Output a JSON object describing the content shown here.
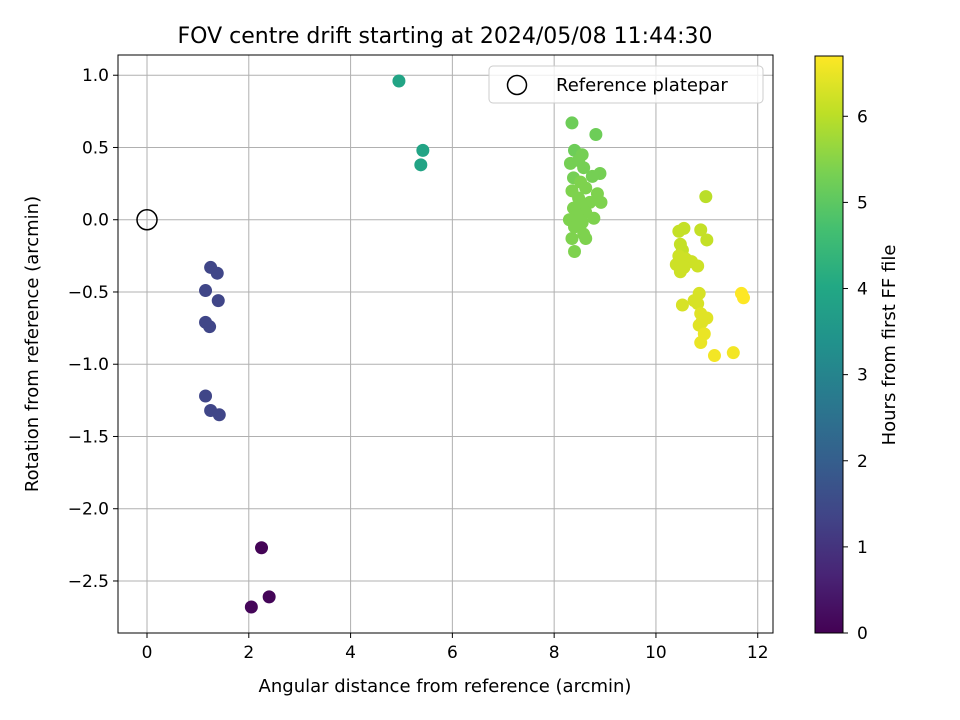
{
  "chart_data": {
    "type": "scatter",
    "title": "FOV centre drift starting at 2024/05/08 11:44:30",
    "xlabel": "Angular distance from reference (arcmin)",
    "ylabel": "Rotation from reference (arcmin)",
    "xlim": [
      -0.57,
      12.3
    ],
    "ylim": [
      -2.86,
      1.14
    ],
    "xticks": [
      0,
      2,
      4,
      6,
      8,
      10,
      12
    ],
    "yticks": [
      -2.5,
      -2.0,
      -1.5,
      -1.0,
      -0.5,
      0.0,
      0.5,
      1.0
    ],
    "xtick_labels": [
      "0",
      "2",
      "4",
      "6",
      "8",
      "10",
      "12"
    ],
    "ytick_labels": [
      "−2.5",
      "−2.0",
      "−1.5",
      "−1.0",
      "−0.5",
      "0.0",
      "0.5",
      "1.0"
    ],
    "grid": true,
    "legend": {
      "placement": "upper right",
      "entries": [
        "Reference platepar"
      ]
    },
    "reference_point": {
      "x": 0,
      "y": 0
    },
    "colorbar": {
      "label": "Hours from first FF file",
      "colormap": "viridis",
      "range": [
        0,
        6.7
      ],
      "ticks": [
        0,
        1,
        2,
        3,
        4,
        5,
        6
      ],
      "tick_labels": [
        "0",
        "1",
        "2",
        "3",
        "4",
        "5",
        "6"
      ]
    },
    "points": [
      {
        "x": 2.25,
        "y": -2.27,
        "h": 0.05
      },
      {
        "x": 2.4,
        "y": -2.61,
        "h": 0.08
      },
      {
        "x": 2.05,
        "y": -2.68,
        "h": 0.1
      },
      {
        "x": 1.25,
        "y": -0.33,
        "h": 1.4
      },
      {
        "x": 1.38,
        "y": -0.37,
        "h": 1.4
      },
      {
        "x": 1.15,
        "y": -0.49,
        "h": 1.4
      },
      {
        "x": 1.4,
        "y": -0.56,
        "h": 1.4
      },
      {
        "x": 1.15,
        "y": -0.71,
        "h": 1.4
      },
      {
        "x": 1.23,
        "y": -0.74,
        "h": 1.4
      },
      {
        "x": 1.15,
        "y": -1.22,
        "h": 1.4
      },
      {
        "x": 1.25,
        "y": -1.32,
        "h": 1.4
      },
      {
        "x": 1.42,
        "y": -1.35,
        "h": 1.4
      },
      {
        "x": 4.95,
        "y": 0.96,
        "h": 3.9
      },
      {
        "x": 5.42,
        "y": 0.48,
        "h": 3.9
      },
      {
        "x": 5.38,
        "y": 0.38,
        "h": 3.9
      },
      {
        "x": 8.35,
        "y": 0.67,
        "h": 5.2
      },
      {
        "x": 8.82,
        "y": 0.59,
        "h": 5.2
      },
      {
        "x": 8.4,
        "y": 0.48,
        "h": 5.2
      },
      {
        "x": 8.55,
        "y": 0.45,
        "h": 5.3
      },
      {
        "x": 8.32,
        "y": 0.39,
        "h": 5.3
      },
      {
        "x": 8.48,
        "y": 0.41,
        "h": 5.3
      },
      {
        "x": 8.58,
        "y": 0.36,
        "h": 5.3
      },
      {
        "x": 8.9,
        "y": 0.32,
        "h": 5.3
      },
      {
        "x": 8.75,
        "y": 0.3,
        "h": 5.3
      },
      {
        "x": 8.38,
        "y": 0.29,
        "h": 5.3
      },
      {
        "x": 8.52,
        "y": 0.26,
        "h": 5.4
      },
      {
        "x": 8.62,
        "y": 0.22,
        "h": 5.4
      },
      {
        "x": 8.35,
        "y": 0.2,
        "h": 5.4
      },
      {
        "x": 8.85,
        "y": 0.18,
        "h": 5.4
      },
      {
        "x": 8.48,
        "y": 0.15,
        "h": 5.4
      },
      {
        "x": 8.7,
        "y": 0.12,
        "h": 5.4
      },
      {
        "x": 8.92,
        "y": 0.12,
        "h": 5.4
      },
      {
        "x": 8.55,
        "y": 0.1,
        "h": 5.4
      },
      {
        "x": 8.38,
        "y": 0.08,
        "h": 5.4
      },
      {
        "x": 8.62,
        "y": 0.05,
        "h": 5.4
      },
      {
        "x": 8.45,
        "y": 0.03,
        "h": 5.4
      },
      {
        "x": 8.78,
        "y": 0.01,
        "h": 5.4
      },
      {
        "x": 8.3,
        "y": 0.0,
        "h": 5.4
      },
      {
        "x": 8.55,
        "y": -0.02,
        "h": 5.4
      },
      {
        "x": 8.4,
        "y": -0.05,
        "h": 5.4
      },
      {
        "x": 8.58,
        "y": -0.1,
        "h": 5.4
      },
      {
        "x": 8.35,
        "y": -0.13,
        "h": 5.4
      },
      {
        "x": 8.62,
        "y": -0.13,
        "h": 5.4
      },
      {
        "x": 8.4,
        "y": -0.22,
        "h": 5.4
      },
      {
        "x": 10.98,
        "y": 0.16,
        "h": 6.0
      },
      {
        "x": 10.55,
        "y": -0.06,
        "h": 6.1
      },
      {
        "x": 10.45,
        "y": -0.08,
        "h": 6.1
      },
      {
        "x": 10.88,
        "y": -0.07,
        "h": 6.1
      },
      {
        "x": 11.0,
        "y": -0.14,
        "h": 6.1
      },
      {
        "x": 10.48,
        "y": -0.17,
        "h": 6.1
      },
      {
        "x": 10.52,
        "y": -0.21,
        "h": 6.1
      },
      {
        "x": 10.45,
        "y": -0.25,
        "h": 6.2
      },
      {
        "x": 10.58,
        "y": -0.27,
        "h": 6.2
      },
      {
        "x": 10.7,
        "y": -0.29,
        "h": 6.2
      },
      {
        "x": 10.4,
        "y": -0.31,
        "h": 6.2
      },
      {
        "x": 10.82,
        "y": -0.32,
        "h": 6.2
      },
      {
        "x": 10.55,
        "y": -0.33,
        "h": 6.2
      },
      {
        "x": 10.48,
        "y": -0.36,
        "h": 6.2
      },
      {
        "x": 10.85,
        "y": -0.51,
        "h": 6.3
      },
      {
        "x": 11.68,
        "y": -0.51,
        "h": 6.7
      },
      {
        "x": 11.72,
        "y": -0.54,
        "h": 6.7
      },
      {
        "x": 10.75,
        "y": -0.56,
        "h": 6.3
      },
      {
        "x": 10.82,
        "y": -0.58,
        "h": 6.3
      },
      {
        "x": 10.52,
        "y": -0.59,
        "h": 6.3
      },
      {
        "x": 10.88,
        "y": -0.65,
        "h": 6.4
      },
      {
        "x": 11.0,
        "y": -0.68,
        "h": 6.4
      },
      {
        "x": 10.9,
        "y": -0.71,
        "h": 6.4
      },
      {
        "x": 10.85,
        "y": -0.73,
        "h": 6.4
      },
      {
        "x": 10.95,
        "y": -0.79,
        "h": 6.5
      },
      {
        "x": 10.88,
        "y": -0.85,
        "h": 6.5
      },
      {
        "x": 11.52,
        "y": -0.92,
        "h": 6.6
      },
      {
        "x": 11.15,
        "y": -0.94,
        "h": 6.6
      }
    ]
  }
}
